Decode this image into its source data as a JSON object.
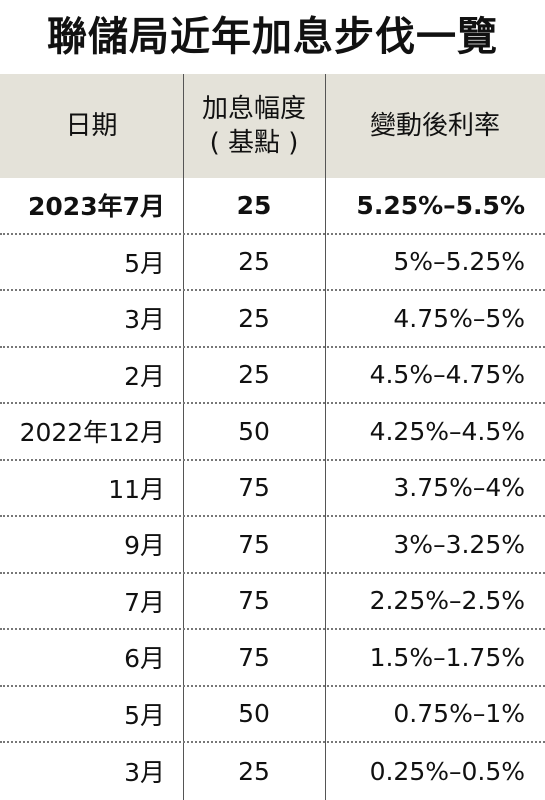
{
  "title": "聯儲局近年加息步伐一覽",
  "headers": {
    "date": "日期",
    "bp_line1": "加息幅度",
    "bp_line2": "( 基點 )",
    "rate": "變動後利率"
  },
  "rows": [
    {
      "date": "2023年7月",
      "bp": "25",
      "rate": "5.25%–5.5%"
    },
    {
      "date": "5月",
      "bp": "25",
      "rate": "5%–5.25%"
    },
    {
      "date": "3月",
      "bp": "25",
      "rate": "4.75%–5%"
    },
    {
      "date": "2月",
      "bp": "25",
      "rate": "4.5%–4.75%"
    },
    {
      "date": "2022年12月",
      "bp": "50",
      "rate": "4.25%–4.5%"
    },
    {
      "date": "11月",
      "bp": "75",
      "rate": "3.75%–4%"
    },
    {
      "date": "9月",
      "bp": "75",
      "rate": "3%–3.25%"
    },
    {
      "date": "7月",
      "bp": "75",
      "rate": "2.25%–2.5%"
    },
    {
      "date": "6月",
      "bp": "75",
      "rate": "1.5%–1.75%"
    },
    {
      "date": "5月",
      "bp": "50",
      "rate": "0.75%–1%"
    },
    {
      "date": "3月",
      "bp": "25",
      "rate": "0.25%–0.5%"
    }
  ],
  "colors": {
    "header_bg": "#e4e2d9",
    "text": "#111111",
    "divider": "#555555"
  }
}
